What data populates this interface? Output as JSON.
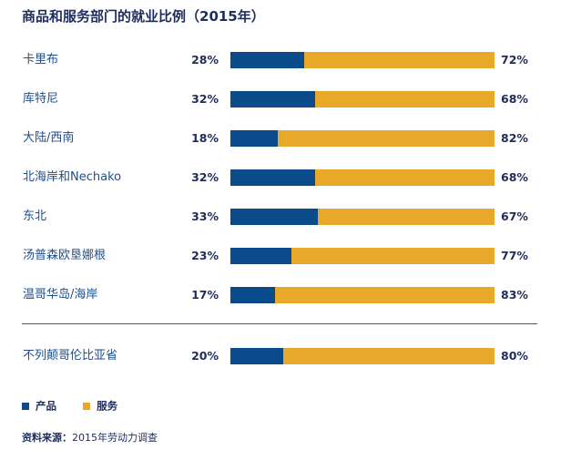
{
  "chart_data": {
    "type": "bar",
    "stacked": true,
    "orientation": "horizontal",
    "title": "商品和服务部门的就业比例（2015年）",
    "categories": [
      "卡里布",
      "库特尼",
      "大陆/西南",
      "北海岸和Nechako",
      "东北",
      "汤普森欧垦娜根",
      "温哥华岛/海岸",
      "不列颠哥伦比亚省"
    ],
    "series": [
      {
        "name": "产品",
        "values": [
          28,
          32,
          18,
          32,
          33,
          23,
          17,
          20
        ],
        "color": "#0b4a8b"
      },
      {
        "name": "服务",
        "values": [
          72,
          68,
          82,
          68,
          67,
          77,
          83,
          80
        ],
        "color": "#e8a82a"
      }
    ],
    "value_suffix": "%",
    "xlim": [
      0,
      100
    ],
    "grid": false,
    "legend_position": "bottom-left"
  },
  "source": {
    "label": "资料来源：",
    "text": "2015年劳动力调查"
  }
}
